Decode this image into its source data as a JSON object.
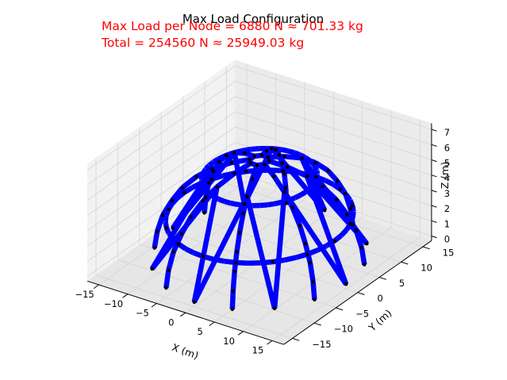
{
  "chart_data": {
    "type": "3d-wireframe",
    "title": "Max Load Configuration",
    "annotations": [
      "Max Load per Node = 6880 N ≈ 701.33 kg",
      "Total = 254560 N ≈ 25949.03 kg"
    ],
    "annotation_color": "#ff0000",
    "member_color": "#0000ff",
    "node_color": "#000000",
    "xlabel": "X (m)",
    "ylabel": "Y (m)",
    "zlabel": "Z (m)",
    "x_ticks": [
      -15,
      -10,
      -5,
      0,
      5,
      10,
      15
    ],
    "y_ticks": [
      -15,
      -10,
      -5,
      0,
      5,
      10,
      15
    ],
    "z_ticks": [
      0,
      1,
      2,
      3,
      4,
      5,
      6,
      7
    ],
    "xlim": [
      -17,
      17
    ],
    "ylim": [
      -17,
      17
    ],
    "zlim": [
      -0.3,
      7.4
    ],
    "grid": true,
    "dome": {
      "ribs": 8,
      "rib_start_angle_deg": -22.5,
      "base_radius": 15,
      "crown_height": 6.3,
      "rib_node_levels": [
        [
          15.0,
          0.0
        ],
        [
          14.6,
          1.1
        ],
        [
          13.8,
          2.2
        ],
        [
          12.5,
          3.2
        ],
        [
          11.0,
          4.1
        ],
        [
          9.0,
          4.9
        ],
        [
          6.8,
          5.5
        ],
        [
          4.0,
          6.0
        ],
        [
          1.4,
          6.3
        ]
      ],
      "bottom_ring": {
        "radius": 15,
        "z": 0
      },
      "middle_ring": {
        "radius": 13.0,
        "z": 2.6
      },
      "upper_ring": {
        "radius": 8.0,
        "z": 5.2
      }
    }
  }
}
